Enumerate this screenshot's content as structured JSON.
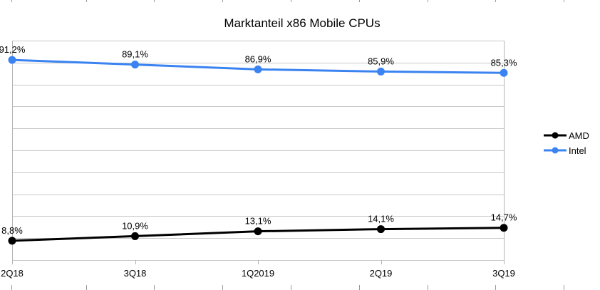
{
  "chart_data": {
    "type": "line",
    "title": "Marktanteil x86 Mobile CPUs",
    "xlabel": "",
    "ylabel": "",
    "categories": [
      "2Q18",
      "3Q18",
      "1Q2019",
      "2Q19",
      "3Q19"
    ],
    "ylim": [
      0,
      100
    ],
    "y_grid_step": 10,
    "grid": true,
    "y_tick_labels_visible": false,
    "legend_position": "right",
    "series": [
      {
        "name": "AMD",
        "color": "#000000",
        "values": [
          8.8,
          10.9,
          13.1,
          14.1,
          14.7
        ],
        "labels": [
          "8,8%",
          "10,9%",
          "13,1%",
          "14,1%",
          "14,7%"
        ]
      },
      {
        "name": "Intel",
        "color": "#3a83f1",
        "values": [
          91.2,
          89.1,
          86.9,
          85.9,
          85.3
        ],
        "labels": [
          "91,2%",
          "89,1%",
          "86,9%",
          "85,9%",
          "85,3%"
        ]
      }
    ],
    "legend": [
      "AMD",
      "Intel"
    ]
  },
  "colors": {
    "grid": "#c8c8c8",
    "axis": "#b3b3b3",
    "ruler_tick": "#9a9a9a"
  }
}
